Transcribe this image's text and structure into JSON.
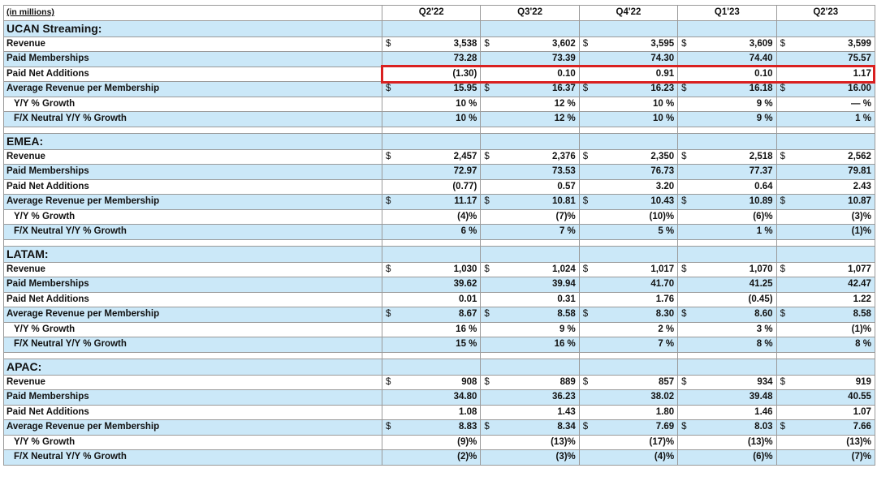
{
  "units_label": "(in millions)",
  "columns": [
    "Q2'22",
    "Q3'22",
    "Q4'22",
    "Q1'23",
    "Q2'23"
  ],
  "currency_symbol": "$",
  "highlight_color": "#d92020",
  "row_band_color": "#cbe8f8",
  "regions": [
    {
      "name": "UCAN Streaming:",
      "rows": [
        {
          "label": "Revenue",
          "currency": true,
          "values": [
            "3,538",
            "3,602",
            "3,595",
            "3,609",
            "3,599"
          ]
        },
        {
          "label": "Paid Memberships",
          "values": [
            "73.28",
            "73.39",
            "74.30",
            "74.40",
            "75.57"
          ]
        },
        {
          "label": "Paid Net Additions",
          "values": [
            "(1.30)",
            "0.10",
            "0.91",
            "0.10",
            "1.17"
          ],
          "highlighted": true
        },
        {
          "label": "Average Revenue per Membership",
          "currency": true,
          "values": [
            "15.95",
            "16.37",
            "16.23",
            "16.18",
            "16.00"
          ]
        },
        {
          "label": "Y/Y % Growth",
          "indent": true,
          "values": [
            "10 %",
            "12 %",
            "10 %",
            "9 %",
            "— %"
          ]
        },
        {
          "label": "F/X Neutral Y/Y % Growth",
          "indent": true,
          "values": [
            "10 %",
            "12 %",
            "10 %",
            "9 %",
            "1 %"
          ]
        }
      ]
    },
    {
      "name": "EMEA:",
      "rows": [
        {
          "label": "Revenue",
          "currency": true,
          "values": [
            "2,457",
            "2,376",
            "2,350",
            "2,518",
            "2,562"
          ]
        },
        {
          "label": "Paid Memberships",
          "values": [
            "72.97",
            "73.53",
            "76.73",
            "77.37",
            "79.81"
          ]
        },
        {
          "label": "Paid Net Additions",
          "values": [
            "(0.77)",
            "0.57",
            "3.20",
            "0.64",
            "2.43"
          ]
        },
        {
          "label": "Average Revenue per Membership",
          "currency": true,
          "values": [
            "11.17",
            "10.81",
            "10.43",
            "10.89",
            "10.87"
          ]
        },
        {
          "label": "Y/Y % Growth",
          "indent": true,
          "values": [
            "(4)%",
            "(7)%",
            "(10)%",
            "(6)%",
            "(3)%"
          ]
        },
        {
          "label": "F/X Neutral Y/Y % Growth",
          "indent": true,
          "values": [
            "6 %",
            "7 %",
            "5 %",
            "1 %",
            "(1)%"
          ]
        }
      ]
    },
    {
      "name": "LATAM:",
      "rows": [
        {
          "label": "Revenue",
          "currency": true,
          "values": [
            "1,030",
            "1,024",
            "1,017",
            "1,070",
            "1,077"
          ]
        },
        {
          "label": "Paid Memberships",
          "values": [
            "39.62",
            "39.94",
            "41.70",
            "41.25",
            "42.47"
          ]
        },
        {
          "label": "Paid Net Additions",
          "values": [
            "0.01",
            "0.31",
            "1.76",
            "(0.45)",
            "1.22"
          ]
        },
        {
          "label": "Average Revenue per Membership",
          "currency": true,
          "values": [
            "8.67",
            "8.58",
            "8.30",
            "8.60",
            "8.58"
          ]
        },
        {
          "label": "Y/Y % Growth",
          "indent": true,
          "values": [
            "16 %",
            "9 %",
            "2 %",
            "3 %",
            "(1)%"
          ]
        },
        {
          "label": "F/X Neutral Y/Y % Growth",
          "indent": true,
          "values": [
            "15 %",
            "16 %",
            "7 %",
            "8 %",
            "8 %"
          ]
        }
      ]
    },
    {
      "name": "APAC:",
      "rows": [
        {
          "label": "Revenue",
          "currency": true,
          "values": [
            "908",
            "889",
            "857",
            "934",
            "919"
          ]
        },
        {
          "label": "Paid Memberships",
          "values": [
            "34.80",
            "36.23",
            "38.02",
            "39.48",
            "40.55"
          ]
        },
        {
          "label": "Paid Net Additions",
          "values": [
            "1.08",
            "1.43",
            "1.80",
            "1.46",
            "1.07"
          ]
        },
        {
          "label": "Average Revenue per Membership",
          "currency": true,
          "values": [
            "8.83",
            "8.34",
            "7.69",
            "8.03",
            "7.66"
          ]
        },
        {
          "label": "Y/Y % Growth",
          "indent": true,
          "values": [
            "(9)%",
            "(13)%",
            "(17)%",
            "(13)%",
            "(13)%"
          ]
        },
        {
          "label": "F/X Neutral Y/Y % Growth",
          "indent": true,
          "values": [
            "(2)%",
            "(3)%",
            "(4)%",
            "(6)%",
            "(7)%"
          ]
        }
      ]
    }
  ]
}
